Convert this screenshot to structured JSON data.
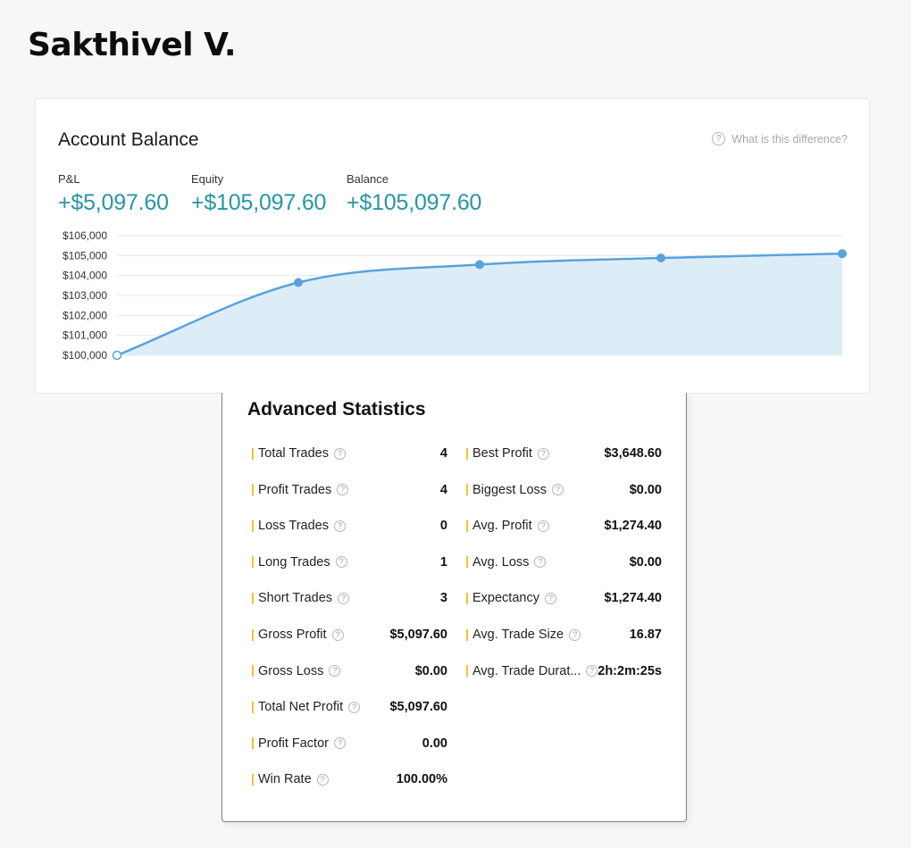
{
  "trader_name": "Sakthivel V.",
  "account_balance": {
    "title": "Account Balance",
    "help_text": "What is this difference?",
    "metrics": [
      {
        "label": "P&L",
        "value": "+$5,097.60"
      },
      {
        "label": "Equity",
        "value": "+$105,097.60"
      },
      {
        "label": "Balance",
        "value": "+$105,097.60"
      }
    ],
    "colors": {
      "accent": "#2596a6",
      "line": "#5aa2dc",
      "fill": "#dbecf8"
    }
  },
  "chart_data": {
    "type": "area",
    "y_ticks": [
      "$106,000",
      "$105,000",
      "$104,000",
      "$103,000",
      "$102,000",
      "$101,000",
      "$100,000"
    ],
    "ylim": [
      100000,
      106000
    ],
    "x": [
      0,
      1,
      2,
      3,
      4
    ],
    "values": [
      100000,
      103648.6,
      104550,
      104880,
      105097.6
    ],
    "grid": true
  },
  "advanced_statistics": {
    "title": "Advanced Statistics",
    "left": [
      {
        "label": "Total Trades",
        "value": "4"
      },
      {
        "label": "Profit Trades",
        "value": "4"
      },
      {
        "label": "Loss Trades",
        "value": "0"
      },
      {
        "label": "Long Trades",
        "value": "1"
      },
      {
        "label": "Short Trades",
        "value": "3"
      },
      {
        "label": "Gross Profit",
        "value": "$5,097.60"
      },
      {
        "label": "Gross Loss",
        "value": "$0.00"
      },
      {
        "label": "Total Net Profit",
        "value": "$5,097.60"
      },
      {
        "label": "Profit Factor",
        "value": "0.00"
      },
      {
        "label": "Win Rate",
        "value": "100.00%"
      }
    ],
    "right": [
      {
        "label": "Best Profit",
        "value": "$3,648.60"
      },
      {
        "label": "Biggest Loss",
        "value": "$0.00"
      },
      {
        "label": "Avg. Profit",
        "value": "$1,274.40"
      },
      {
        "label": "Avg. Loss",
        "value": "$0.00"
      },
      {
        "label": "Expectancy",
        "value": "$1,274.40"
      },
      {
        "label": "Avg. Trade Size",
        "value": "16.87"
      },
      {
        "label": "Avg. Trade Durat...",
        "value": "2h:2m:25s"
      }
    ]
  }
}
